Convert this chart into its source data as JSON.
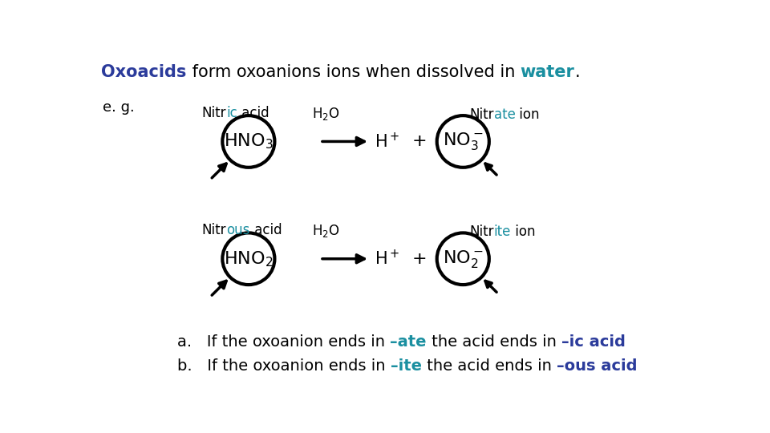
{
  "bg_color": "#ffffff",
  "blue_color": "#2B3B9B",
  "teal_color": "#1A8FA0",
  "black_color": "#000000",
  "circle_lw": 3.0,
  "arrow_lw": 2.5,
  "title_text1": "Oxoacids",
  "title_text2": " form oxoanions ions when dissolved in ",
  "title_text3": "water",
  "title_text4": ".",
  "eg_label": "e. g.",
  "row1_acid": "HNO$_3$",
  "row1_anion": "NO$_3^-$",
  "row2_acid": "HNO$_2$",
  "row2_anion": "NO$_2^-$",
  "hplus": "H$^+$",
  "plus": "+",
  "h2o": "H$_2$O",
  "nitric_pre": "Nitr",
  "nitric_mid": "ic",
  "nitric_end": " acid",
  "nitrate_pre": "Nitr",
  "nitrate_mid": "ate",
  "nitrate_end": " ion",
  "nitrous_pre": "Nitr",
  "nitrous_mid": "ous",
  "nitrous_end": " acid",
  "nitrite_pre": "Nitr",
  "nitrite_mid": "ite",
  "nitrite_end": " ion",
  "rule_a_pre": "a.   If the oxoanion ends in ",
  "rule_a_mid1": "–ate",
  "rule_a_mid2": " the acid ends in ",
  "rule_a_mid3": "–ic acid",
  "rule_b_pre": "b.   If the oxoanion ends in ",
  "rule_b_mid1": "–ite",
  "rule_b_mid2": " the acid ends in ",
  "rule_b_mid3": "–ous acid"
}
